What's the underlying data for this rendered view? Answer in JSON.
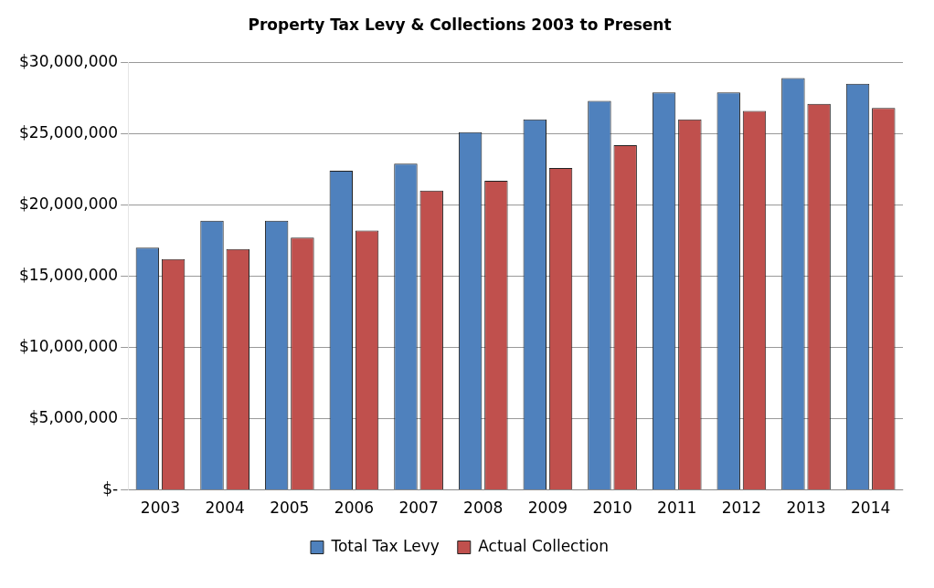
{
  "chart_data": {
    "type": "bar",
    "title": "Property Tax Levy & Collections 2003 to Present",
    "categories": [
      "2003",
      "2004",
      "2005",
      "2006",
      "2007",
      "2008",
      "2009",
      "2010",
      "2011",
      "2012",
      "2013",
      "2014"
    ],
    "series": [
      {
        "name": "Total Tax Levy",
        "color": "#4f81bd",
        "values": [
          17000000,
          18900000,
          18900000,
          22400000,
          22900000,
          25100000,
          26000000,
          27300000,
          27900000,
          27900000,
          28900000,
          28500000
        ]
      },
      {
        "name": "Actual Collection",
        "color": "#c0504d",
        "values": [
          16200000,
          16900000,
          17700000,
          18200000,
          21000000,
          21700000,
          22600000,
          24200000,
          26000000,
          26600000,
          27100000,
          26800000
        ]
      }
    ],
    "ylim": [
      0,
      30000000
    ],
    "yticks": [
      {
        "value": 0,
        "label": "$-"
      },
      {
        "value": 5000000,
        "label": "$5,000,000"
      },
      {
        "value": 10000000,
        "label": "$10,000,000"
      },
      {
        "value": 15000000,
        "label": "$15,000,000"
      },
      {
        "value": 20000000,
        "label": "$20,000,000"
      },
      {
        "value": 25000000,
        "label": "$25,000,000"
      },
      {
        "value": 30000000,
        "label": "$30,000,000"
      }
    ],
    "grid": "y",
    "legend": "bottom"
  }
}
